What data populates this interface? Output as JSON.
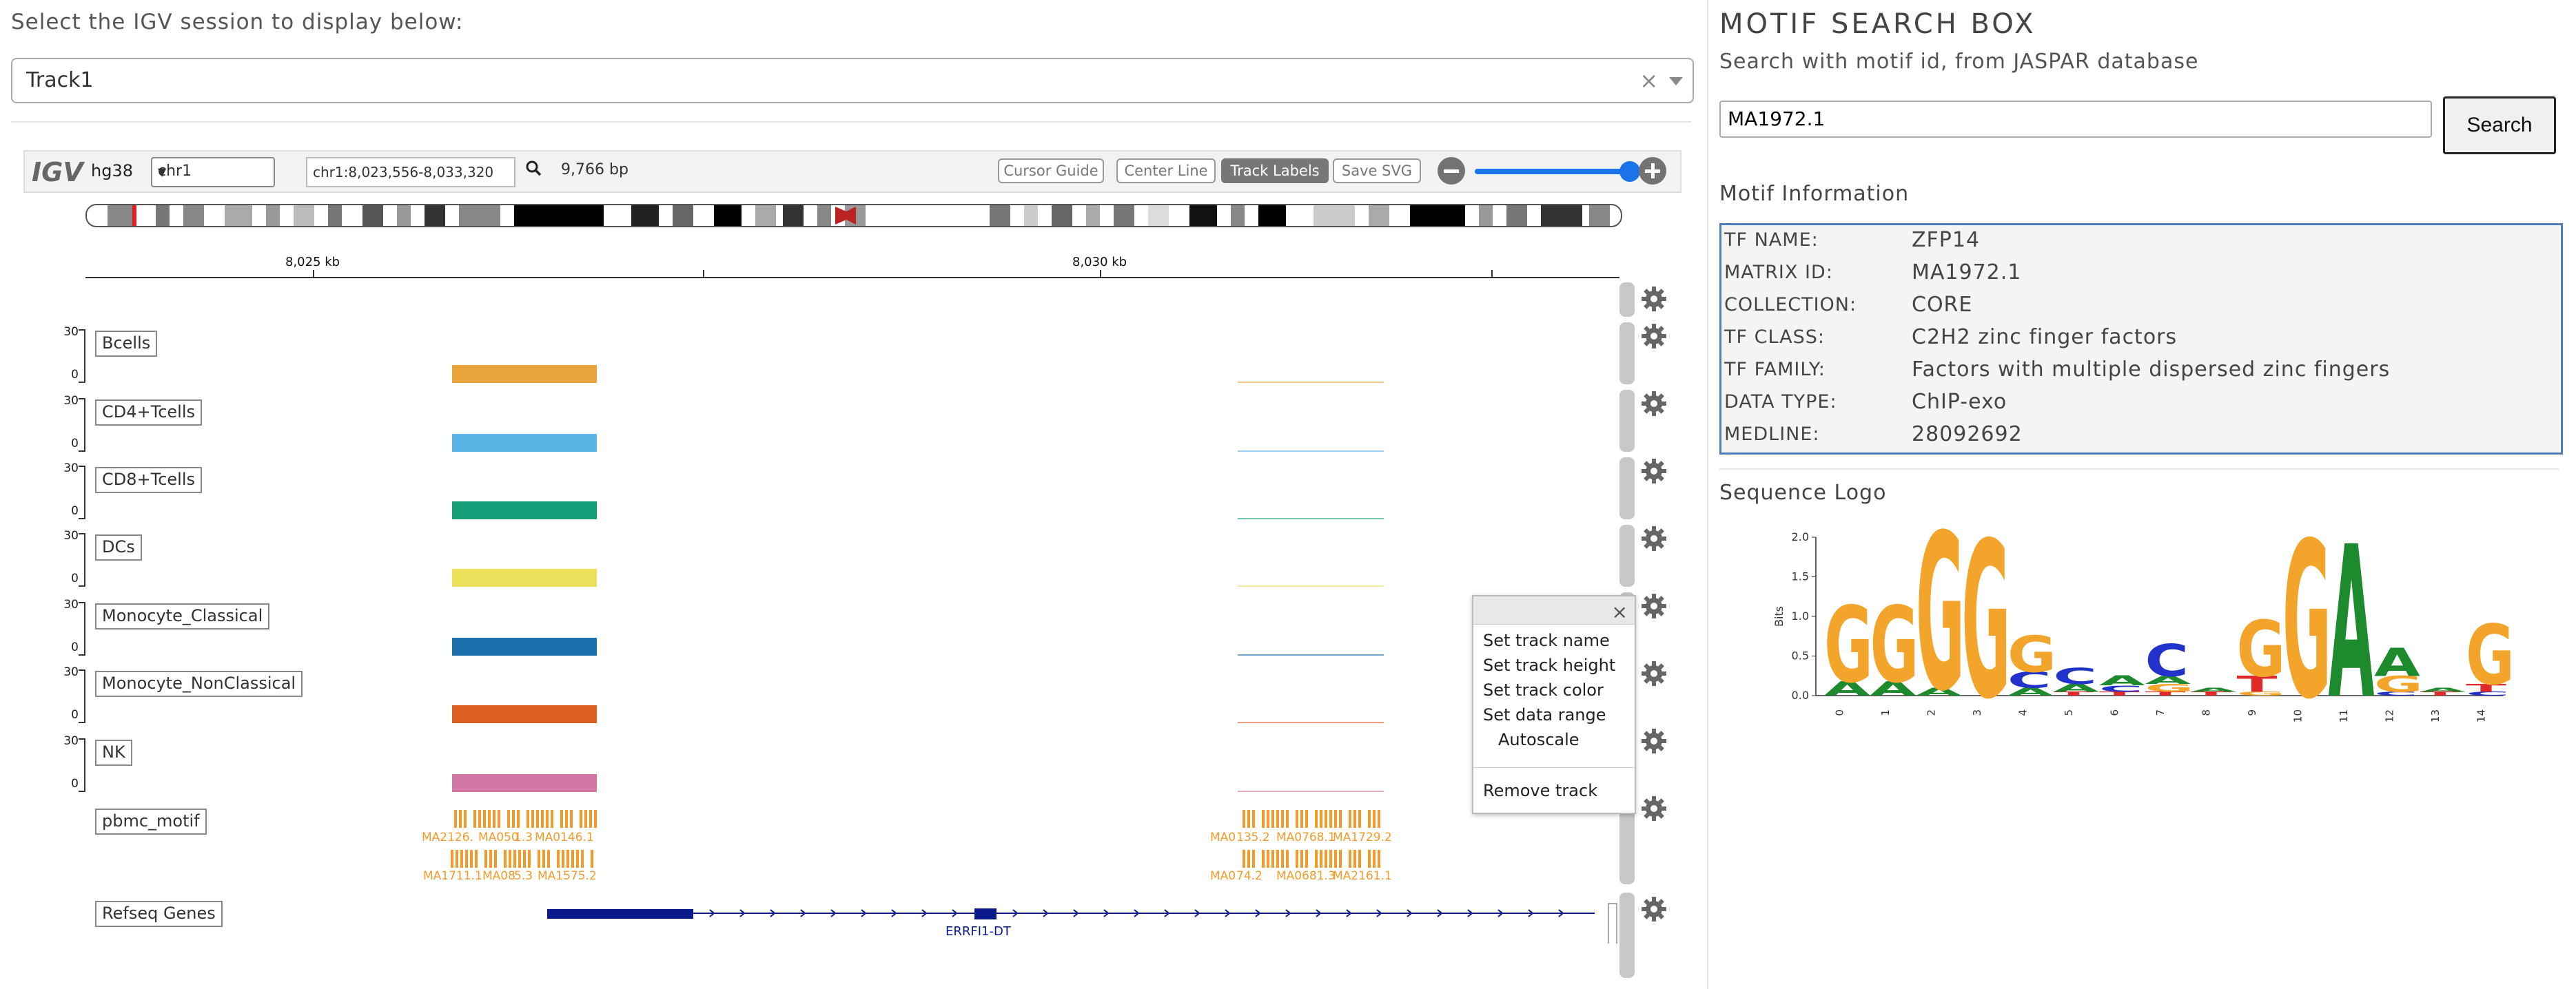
{
  "session": {
    "prompt": "Select the IGV session to display below:",
    "selected": "Track1"
  },
  "igv": {
    "logo": "IGV",
    "genome": "hg38",
    "chromosome": "chr1",
    "locus": "chr1:8,023,556-8,033,320",
    "bp_width": "9,766 bp",
    "buttons": {
      "cursor_guide": "Cursor Guide",
      "center_line": "Center Line",
      "track_labels": "Track Labels",
      "save_svg": "Save SVG"
    },
    "zoom_level": 0.92,
    "ruler": {
      "labels": [
        "8,025 kb",
        "8,030 kb"
      ]
    },
    "tracks": [
      {
        "name": "Bcells",
        "scale_max": "30",
        "scale_min": "0",
        "color": "#e8a33a"
      },
      {
        "name": "CD4+Tcells",
        "scale_max": "30",
        "scale_min": "0",
        "color": "#5ab4e5"
      },
      {
        "name": "CD8+Tcells",
        "scale_max": "30",
        "scale_min": "0",
        "color": "#149e78"
      },
      {
        "name": "DCs",
        "scale_max": "30",
        "scale_min": "0",
        "color": "#ece05a"
      },
      {
        "name": "Monocyte_Classical",
        "scale_max": "30",
        "scale_min": "0",
        "color": "#1b6fab"
      },
      {
        "name": "Monocyte_NonClassical",
        "scale_max": "30",
        "scale_min": "0",
        "color": "#dc5e21"
      },
      {
        "name": "NK",
        "scale_max": "30",
        "scale_min": "0",
        "color": "#d177a6"
      }
    ],
    "motif_track": {
      "name": "pbmc_motif",
      "color": "#f29b2b",
      "labels_row1_left": [
        "MA2126.",
        "MA050",
        "1.3",
        "MA0146.1"
      ],
      "labels_row2_left": [
        "MA1711.1",
        "MA08",
        "5.3",
        "MA1575.2"
      ],
      "labels_row1_right": [
        "MA0",
        "135.2",
        "MA0768.1",
        "MA1729.2"
      ],
      "labels_row2_right": [
        "MA0",
        "74.2",
        "MA0681.3",
        "MA2161.1"
      ]
    },
    "genes_track": {
      "name": "Refseq Genes",
      "gene": "ERRFI1-DT"
    },
    "popup_menu": {
      "close": "×",
      "items": [
        "Set track name",
        "Set track height",
        "Set track color",
        "Set data range",
        "Autoscale",
        "Remove track"
      ]
    }
  },
  "motif_search": {
    "title": "MOTIF SEARCH BOX",
    "subtitle": "Search with motif id, from JASPAR database",
    "input_value": "MA1972.1",
    "button": "Search",
    "info_title": "Motif Information",
    "info": [
      {
        "key": "TF NAME:",
        "value": "ZFP14"
      },
      {
        "key": "MATRIX ID:",
        "value": "MA1972.1"
      },
      {
        "key": "COLLECTION:",
        "value": "CORE"
      },
      {
        "key": "TF CLASS:",
        "value": "C2H2 zinc finger factors"
      },
      {
        "key": "TF FAMILY:",
        "value": "Factors with multiple dispersed zinc fingers"
      },
      {
        "key": "DATA TYPE:",
        "value": "ChIP-exo"
      },
      {
        "key": "MEDLINE:",
        "value": "28092692"
      }
    ],
    "logo_title": "Sequence Logo",
    "logo": {
      "ylabel": "Bits",
      "yticks": [
        "2.0",
        "1.5",
        "1.0",
        "0.5",
        "0.0"
      ],
      "xticks": [
        "0",
        "1",
        "2",
        "3",
        "4",
        "5",
        "6",
        "7",
        "8",
        "9",
        "10",
        "11",
        "12",
        "13",
        "14"
      ],
      "positions": [
        {
          "letters": [
            [
              "A",
              0.18
            ],
            [
              "G",
              0.95
            ]
          ]
        },
        {
          "letters": [
            [
              "A",
              0.18
            ],
            [
              "G",
              0.95
            ]
          ]
        },
        {
          "letters": [
            [
              "A",
              0.1
            ],
            [
              "G",
              1.95
            ]
          ]
        },
        {
          "letters": [
            [
              "G",
              1.95
            ]
          ]
        },
        {
          "letters": [
            [
              "A",
              0.1
            ],
            [
              "C",
              0.2
            ],
            [
              "G",
              0.45
            ]
          ]
        },
        {
          "letters": [
            [
              "T",
              0.05
            ],
            [
              "A",
              0.1
            ],
            [
              "C",
              0.2
            ]
          ]
        },
        {
          "letters": [
            [
              "T",
              0.05
            ],
            [
              "C",
              0.08
            ],
            [
              "A",
              0.12
            ]
          ]
        },
        {
          "letters": [
            [
              "T",
              0.05
            ],
            [
              "G",
              0.1
            ],
            [
              "A",
              0.1
            ],
            [
              "C",
              0.4
            ]
          ]
        },
        {
          "letters": [
            [
              "T",
              0.05
            ],
            [
              "A",
              0.05
            ]
          ]
        },
        {
          "letters": [
            [
              "G",
              0.05
            ],
            [
              "T",
              0.2
            ],
            [
              "G",
              0.7
            ]
          ]
        },
        {
          "letters": [
            [
              "G",
              1.95
            ]
          ]
        },
        {
          "letters": [
            [
              "A",
              1.9
            ]
          ]
        },
        {
          "letters": [
            [
              "C",
              0.05
            ],
            [
              "G",
              0.2
            ],
            [
              "A",
              0.35
            ]
          ]
        },
        {
          "letters": [
            [
              "T",
              0.05
            ],
            [
              "A",
              0.05
            ]
          ]
        },
        {
          "letters": [
            [
              "C",
              0.05
            ],
            [
              "T",
              0.1
            ],
            [
              "G",
              0.75
            ]
          ]
        }
      ],
      "colors": {
        "A": "#1e8a2e",
        "C": "#2233cc",
        "G": "#f2a42b",
        "T": "#e02a2a"
      }
    }
  }
}
